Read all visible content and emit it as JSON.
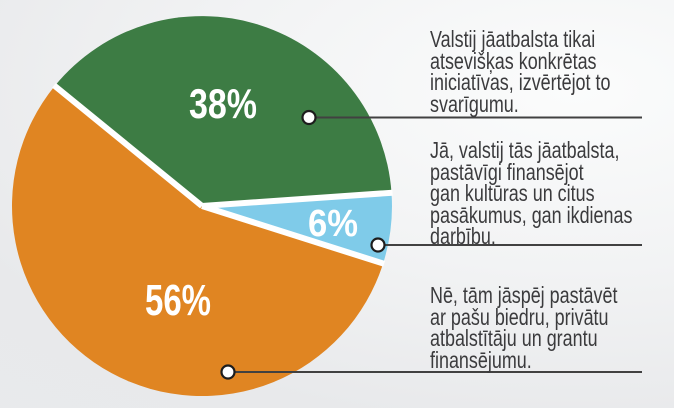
{
  "chart_data": {
    "type": "pie",
    "title": "",
    "legend_position": "right-annotations",
    "colors": {
      "green": "#3d7c44",
      "blue": "#7fcbe9",
      "orange": "#e08522",
      "label_text": "#ffffff",
      "annotation_text": "#3b3b3d",
      "leader_line": "#414141",
      "dot_fill": "#ffffff",
      "dot_stroke": "#1d1d1d",
      "slice_separator": "#ffffff"
    },
    "slices": [
      {
        "value": 38,
        "pct_label": "38%",
        "color": "#3d7c44",
        "label_lines": [
          "Valstij jāatbalsta tikai",
          "atsevišķas konkrētas",
          "iniciatīvas, izvērtējot to",
          "svarīgumu."
        ]
      },
      {
        "value": 6,
        "pct_label": "6%",
        "color": "#7fcbe9",
        "label_lines": [
          "Jā, valstij tās jāatbalsta,",
          "pastāvīgi finansējot",
          "gan kultūras un citus",
          "pasākumus, gan ikdienas",
          "darbību."
        ]
      },
      {
        "value": 56,
        "pct_label": "56%",
        "color": "#e08522",
        "label_lines": [
          "Nē, tām jāspēj pastāvēt",
          "ar pašu biedru, privātu",
          "atbalstītāju un grantu",
          "finansējumu."
        ]
      }
    ]
  }
}
